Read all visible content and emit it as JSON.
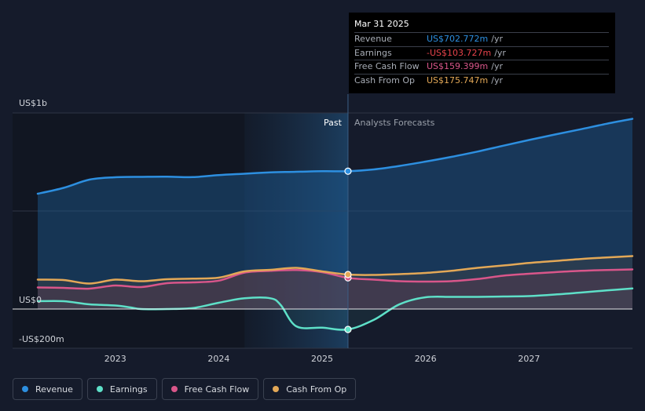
{
  "chart_data": {
    "type": "area",
    "y_unit_labels": {
      "top": "US$1b",
      "zero": "US$0",
      "bottom": "-US$200m"
    },
    "ylim": [
      -200,
      1000
    ],
    "xlim": [
      2022.25,
      2028.0
    ],
    "x_ticks": [
      "2023",
      "2024",
      "2025",
      "2026",
      "2027"
    ],
    "x_tick_values": [
      2023,
      2024,
      2025,
      2026,
      2027
    ],
    "past_label": "Past",
    "forecast_label": "Analysts Forecasts",
    "divider_x": 2025.25,
    "series": [
      {
        "name": "Revenue",
        "color": "#2d8fe0",
        "points": [
          [
            2022.25,
            588
          ],
          [
            2022.5,
            618
          ],
          [
            2022.75,
            660
          ],
          [
            2023.0,
            672
          ],
          [
            2023.25,
            674
          ],
          [
            2023.5,
            675
          ],
          [
            2023.75,
            673
          ],
          [
            2024.0,
            683
          ],
          [
            2024.25,
            690
          ],
          [
            2024.5,
            697
          ],
          [
            2024.75,
            700
          ],
          [
            2025.0,
            703
          ],
          [
            2025.25,
            703
          ],
          [
            2025.5,
            712
          ],
          [
            2025.75,
            730
          ],
          [
            2026.0,
            752
          ],
          [
            2026.25,
            776
          ],
          [
            2026.5,
            803
          ],
          [
            2026.75,
            833
          ],
          [
            2027.0,
            862
          ],
          [
            2027.25,
            890
          ],
          [
            2027.5,
            917
          ],
          [
            2027.75,
            945
          ],
          [
            2028.0,
            970
          ]
        ]
      },
      {
        "name": "Earnings",
        "color": "#5ee0c8",
        "points": [
          [
            2022.25,
            40
          ],
          [
            2022.5,
            40
          ],
          [
            2022.75,
            24
          ],
          [
            2023.0,
            18
          ],
          [
            2023.15,
            8
          ],
          [
            2023.25,
            0
          ],
          [
            2023.5,
            0
          ],
          [
            2023.75,
            5
          ],
          [
            2024.0,
            32
          ],
          [
            2024.25,
            55
          ],
          [
            2024.5,
            55
          ],
          [
            2024.6,
            20
          ],
          [
            2024.75,
            -88
          ],
          [
            2025.0,
            -95
          ],
          [
            2025.25,
            -104
          ],
          [
            2025.5,
            -55
          ],
          [
            2025.75,
            25
          ],
          [
            2026.0,
            60
          ],
          [
            2026.25,
            62
          ],
          [
            2026.5,
            62
          ],
          [
            2026.75,
            64
          ],
          [
            2027.0,
            66
          ],
          [
            2027.25,
            74
          ],
          [
            2027.5,
            84
          ],
          [
            2027.75,
            95
          ],
          [
            2028.0,
            105
          ]
        ]
      },
      {
        "name": "Free Cash Flow",
        "color": "#d9568a",
        "points": [
          [
            2022.25,
            110
          ],
          [
            2022.5,
            108
          ],
          [
            2022.75,
            104
          ],
          [
            2023.0,
            120
          ],
          [
            2023.25,
            112
          ],
          [
            2023.5,
            132
          ],
          [
            2023.75,
            136
          ],
          [
            2024.0,
            145
          ],
          [
            2024.25,
            186
          ],
          [
            2024.5,
            195
          ],
          [
            2024.75,
            199
          ],
          [
            2025.0,
            188
          ],
          [
            2025.25,
            159
          ],
          [
            2025.5,
            150
          ],
          [
            2025.75,
            142
          ],
          [
            2026.0,
            140
          ],
          [
            2026.25,
            142
          ],
          [
            2026.5,
            153
          ],
          [
            2026.75,
            170
          ],
          [
            2027.0,
            180
          ],
          [
            2027.25,
            188
          ],
          [
            2027.5,
            195
          ],
          [
            2027.75,
            199
          ],
          [
            2028.0,
            202
          ]
        ]
      },
      {
        "name": "Cash From Op",
        "color": "#e3a857",
        "points": [
          [
            2022.25,
            150
          ],
          [
            2022.5,
            148
          ],
          [
            2022.75,
            130
          ],
          [
            2023.0,
            150
          ],
          [
            2023.25,
            142
          ],
          [
            2023.5,
            152
          ],
          [
            2023.75,
            155
          ],
          [
            2024.0,
            160
          ],
          [
            2024.25,
            192
          ],
          [
            2024.5,
            200
          ],
          [
            2024.75,
            210
          ],
          [
            2025.0,
            192
          ],
          [
            2025.25,
            176
          ],
          [
            2025.5,
            174
          ],
          [
            2025.75,
            178
          ],
          [
            2026.0,
            184
          ],
          [
            2026.25,
            195
          ],
          [
            2026.5,
            210
          ],
          [
            2026.75,
            222
          ],
          [
            2027.0,
            235
          ],
          [
            2027.25,
            245
          ],
          [
            2027.5,
            255
          ],
          [
            2027.75,
            263
          ],
          [
            2028.0,
            270
          ]
        ]
      }
    ],
    "highlight_points": [
      {
        "series": "Revenue",
        "x": 2025.25,
        "y": 703
      },
      {
        "series": "Earnings",
        "x": 2025.25,
        "y": -104
      },
      {
        "series": "Free Cash Flow",
        "x": 2025.25,
        "y": 159
      },
      {
        "series": "Cash From Op",
        "x": 2025.25,
        "y": 176
      }
    ]
  },
  "tooltip": {
    "date": "Mar 31 2025",
    "rows": [
      {
        "label": "Revenue",
        "value": "US$702.772m",
        "unit": "/yr",
        "color": "#2d8fe0"
      },
      {
        "label": "Earnings",
        "value": "-US$103.727m",
        "unit": "/yr",
        "color": "#e8434b"
      },
      {
        "label": "Free Cash Flow",
        "value": "US$159.399m",
        "unit": "/yr",
        "color": "#d9568a"
      },
      {
        "label": "Cash From Op",
        "value": "US$175.747m",
        "unit": "/yr",
        "color": "#e3a857"
      }
    ]
  },
  "legend": [
    {
      "label": "Revenue",
      "color": "#2d8fe0"
    },
    {
      "label": "Earnings",
      "color": "#5ee0c8"
    },
    {
      "label": "Free Cash Flow",
      "color": "#d9568a"
    },
    {
      "label": "Cash From Op",
      "color": "#e3a857"
    }
  ]
}
